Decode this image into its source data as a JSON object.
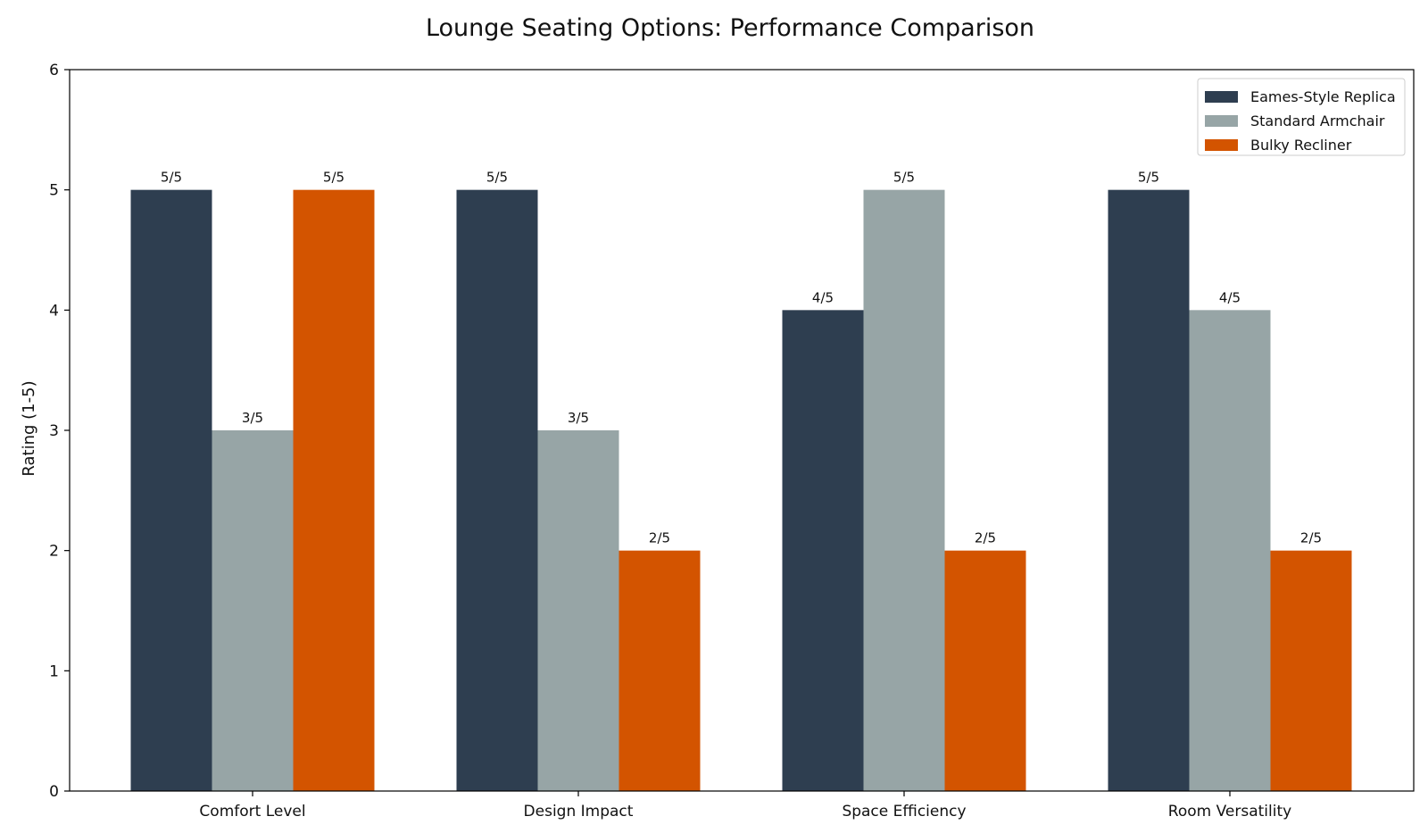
{
  "chart_data": {
    "type": "bar",
    "title": "Lounge Seating Options: Performance Comparison",
    "xlabel": "",
    "ylabel": "Rating (1-5)",
    "ylim": [
      0,
      6
    ],
    "yticks": [
      0,
      1,
      2,
      3,
      4,
      5,
      6
    ],
    "grid": false,
    "legend_position": "top-right",
    "categories": [
      "Comfort Level",
      "Design Impact",
      "Space Efficiency",
      "Room Versatility"
    ],
    "series": [
      {
        "name": "Eames-Style Replica",
        "color": "#2e3e50",
        "values": [
          5,
          5,
          4,
          5
        ],
        "labels": [
          "5/5",
          "5/5",
          "4/5",
          "5/5"
        ]
      },
      {
        "name": "Standard Armchair",
        "color": "#97a5a6",
        "values": [
          3,
          3,
          5,
          4
        ],
        "labels": [
          "3/5",
          "3/5",
          "5/5",
          "4/5"
        ]
      },
      {
        "name": "Bulky Recliner",
        "color": "#d35400",
        "values": [
          5,
          2,
          2,
          2
        ],
        "labels": [
          "5/5",
          "2/5",
          "2/5",
          "2/5"
        ]
      }
    ]
  }
}
